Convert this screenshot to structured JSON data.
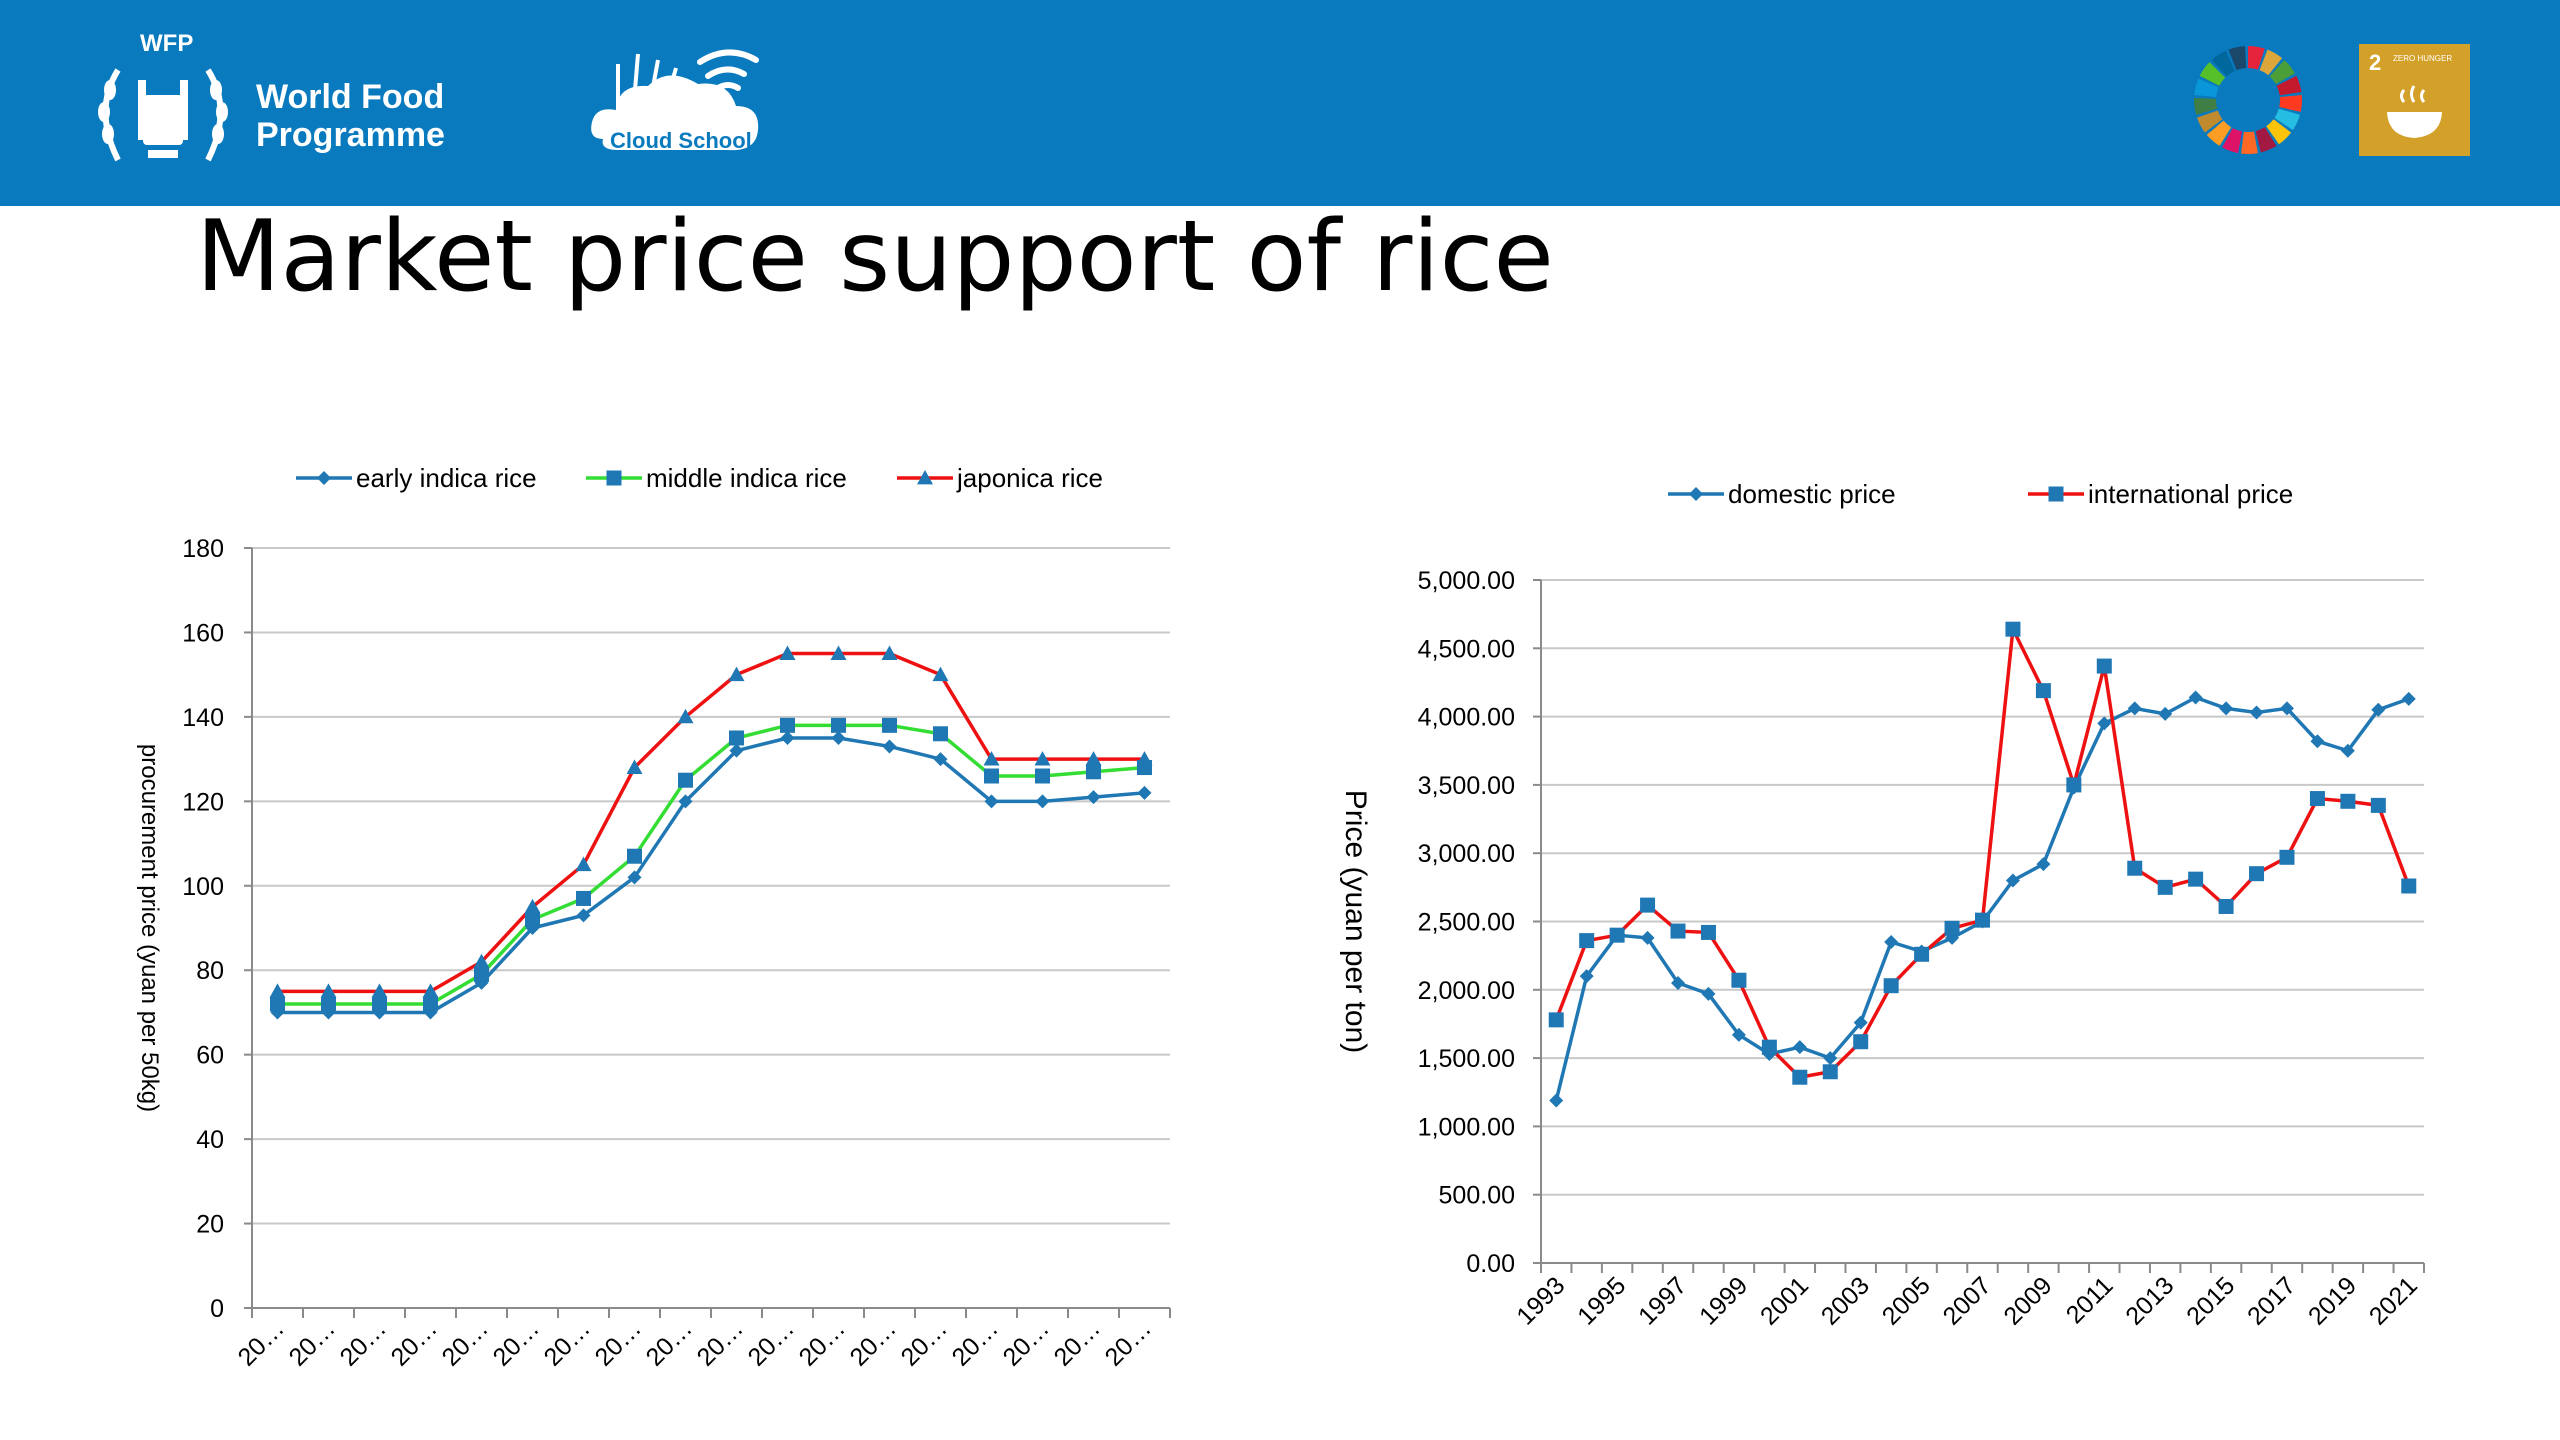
{
  "header": {
    "wfp_short": "WFP",
    "wfp_name_line1": "World Food",
    "wfp_name_line2": "Programme",
    "cloud_school": "Cloud School",
    "sdg_goal_number": "2",
    "sdg_goal_label": "ZERO HUNGER"
  },
  "page": {
    "title": "Market price support of rice"
  },
  "colors": {
    "banner": "#0a7abf",
    "blue_series": "#1f77b4",
    "green_series": "#33dd33",
    "red_series": "#ee1111",
    "sdg2": "#d3a029"
  },
  "chart_data": [
    {
      "type": "line",
      "title": "",
      "xlabel": "",
      "ylabel": "procurement price (yuan per 50kg)",
      "ylim": [
        0,
        180
      ],
      "yticks": [
        "0",
        "20",
        "40",
        "60",
        "80",
        "100",
        "120",
        "140",
        "160",
        "180"
      ],
      "categories": [
        "20…",
        "20…",
        "20…",
        "20…",
        "20…",
        "20…",
        "20…",
        "20…",
        "20…",
        "20…",
        "20…",
        "20…",
        "20…",
        "20…",
        "20…",
        "20…",
        "20…",
        "20…"
      ],
      "grid": true,
      "legend_position": "top",
      "series": [
        {
          "name": "early indica rice",
          "color": "#1f77b4",
          "marker": "diamond",
          "values": [
            70,
            70,
            70,
            70,
            77,
            90,
            93,
            102,
            120,
            132,
            135,
            135,
            133,
            130,
            120,
            120,
            121,
            122
          ]
        },
        {
          "name": "middle indica rice",
          "color": "#33dd33",
          "marker": "square",
          "values": [
            72,
            72,
            72,
            72,
            79,
            92,
            97,
            107,
            125,
            135,
            138,
            138,
            138,
            136,
            126,
            126,
            127,
            128
          ]
        },
        {
          "name": "japonica rice",
          "color": "#ee1111",
          "marker": "triangle",
          "values": [
            75,
            75,
            75,
            75,
            82,
            95,
            105,
            128,
            140,
            150,
            155,
            155,
            155,
            150,
            130,
            130,
            130,
            130
          ]
        }
      ]
    },
    {
      "type": "line",
      "title": "",
      "xlabel": "",
      "ylabel": "Price (yuan per ton)",
      "ylim": [
        0,
        5000
      ],
      "yticks": [
        "0.00",
        "500.00",
        "1,000.00",
        "1,500.00",
        "2,000.00",
        "2,500.00",
        "3,000.00",
        "3,500.00",
        "4,000.00",
        "4,500.00",
        "5,000.00"
      ],
      "x": [
        1993,
        1994,
        1995,
        1996,
        1997,
        1998,
        1999,
        2000,
        2001,
        2002,
        2003,
        2004,
        2005,
        2006,
        2007,
        2008,
        2009,
        2010,
        2011,
        2012,
        2013,
        2014,
        2015,
        2016,
        2017,
        2018,
        2019,
        2020,
        2021
      ],
      "xtick_labels": [
        "1993",
        "1995",
        "1997",
        "1999",
        "2001",
        "2003",
        "2005",
        "2007",
        "2009",
        "2011",
        "2013",
        "2015",
        "2017",
        "2019",
        "2021"
      ],
      "grid": true,
      "legend_position": "top",
      "series": [
        {
          "name": "domestic price",
          "color": "#1f77b4",
          "line_color": "#1f77b4",
          "marker": "diamond",
          "values": [
            1190,
            2100,
            2400,
            2380,
            2050,
            1970,
            1670,
            1530,
            1580,
            1500,
            1760,
            2350,
            2280,
            2380,
            2500,
            2800,
            2920,
            3480,
            3950,
            4060,
            4020,
            4140,
            4060,
            4030,
            4060,
            3820,
            3750,
            4050,
            4130
          ]
        },
        {
          "name": "international price",
          "color": "#1f77b4",
          "line_color": "#ee1111",
          "marker": "square",
          "values": [
            1780,
            2360,
            2400,
            2620,
            2430,
            2420,
            2070,
            1580,
            1360,
            1400,
            1620,
            2030,
            2260,
            2450,
            2510,
            4640,
            4190,
            3500,
            4370,
            2890,
            2750,
            2810,
            2610,
            2850,
            2970,
            3400,
            3380,
            3350,
            2760
          ]
        }
      ]
    }
  ]
}
